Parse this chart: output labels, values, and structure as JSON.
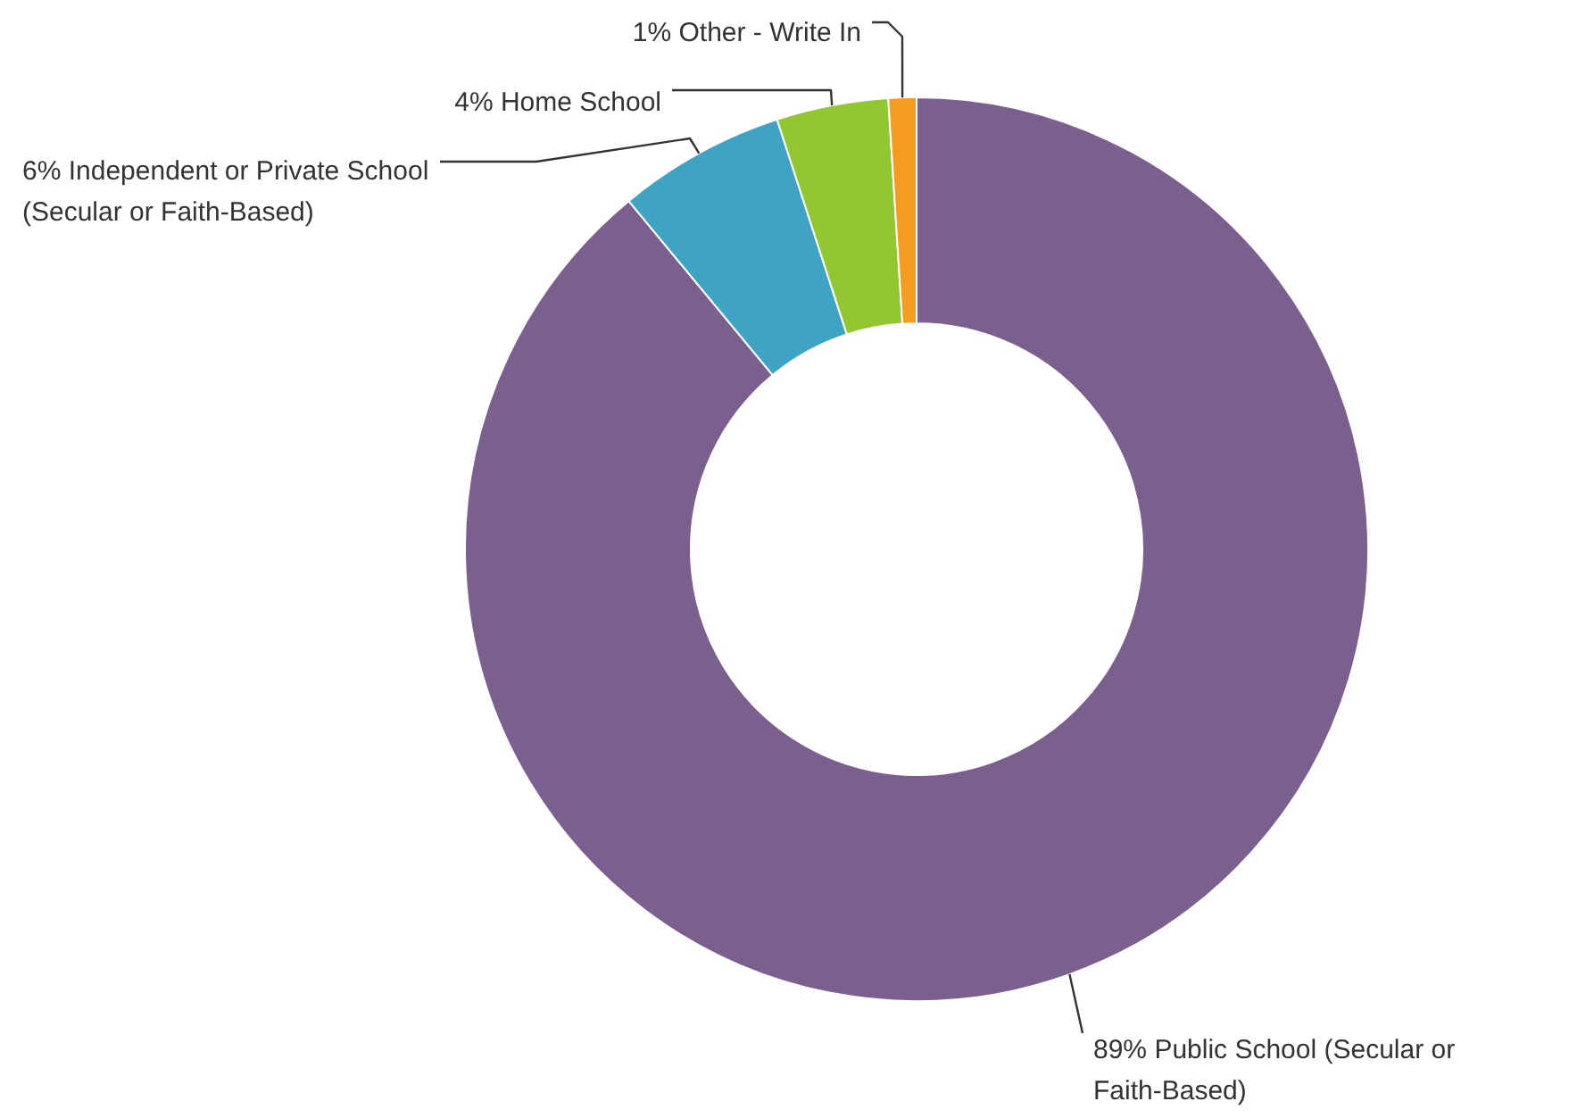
{
  "chart_data": {
    "type": "donut",
    "categories": [
      "Public School (Secular or Faith-Based)",
      "Independent or Private School (Secular or Faith-Based)",
      "Home School",
      "Other - Write In"
    ],
    "values": [
      89,
      6,
      4,
      1
    ],
    "colors": [
      "#7b5f8e",
      "#3fa3c4",
      "#93c731",
      "#f59b1f"
    ],
    "value_labels": [
      "89%",
      "6%",
      "4%",
      "1%"
    ]
  }
}
